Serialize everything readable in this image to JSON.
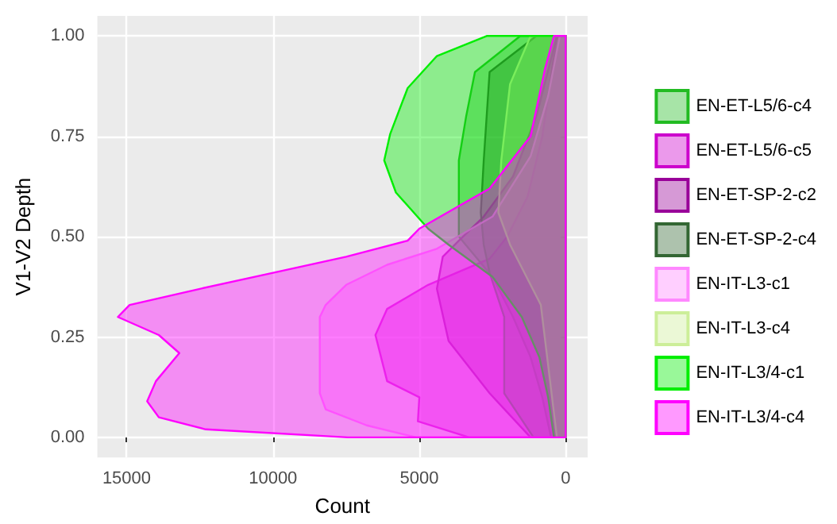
{
  "chart_data": {
    "type": "area",
    "orientation": "horizontal",
    "xlabel": "Count",
    "ylabel": "V1-V2 Depth",
    "xlim": [
      16000,
      -750
    ],
    "xticks": [
      15000,
      10000,
      5000,
      0
    ],
    "ylim": [
      -0.05,
      1.05
    ],
    "yticks": [
      {
        "value": 0,
        "label": "0.00"
      },
      {
        "value": 0.25,
        "label": "0.25"
      },
      {
        "value": 0.5,
        "label": "0.50"
      },
      {
        "value": 0.75,
        "label": "0.75"
      },
      {
        "value": 1,
        "label": "1.00"
      }
    ],
    "grid": true,
    "legend": "right",
    "series": [
      {
        "name": "EN-ET-L5/6-c4",
        "color": "#22bb22",
        "x": [
          0,
          0.1,
          0.2,
          0.3,
          0.4,
          0.5,
          0.6,
          0.69,
          0.8,
          0.91,
          1.0
        ],
        "values": [
          500,
          800,
          1200,
          1800,
          2500,
          3650,
          3650,
          3650,
          3400,
          3100,
          1550
        ]
      },
      {
        "name": "EN-ET-L5/6-c5",
        "color": "#cc00cc",
        "x": [
          0,
          0.04,
          0.1,
          0.14,
          0.255,
          0.32,
          0.38,
          0.445,
          0.5,
          0.6,
          0.75,
          0.9,
          1.0
        ],
        "values": [
          3300,
          5050,
          5000,
          6100,
          6500,
          6100,
          4700,
          2600,
          2000,
          1300,
          800,
          500,
          300
        ]
      },
      {
        "name": "EN-ET-SP-2-c2",
        "color": "#990099",
        "x": [
          0,
          0.11,
          0.24,
          0.37,
          0.45,
          0.49,
          0.55,
          0.65,
          0.8,
          1.0
        ],
        "values": [
          1200,
          2600,
          4000,
          4400,
          4200,
          3650,
          2800,
          1800,
          1000,
          300
        ]
      },
      {
        "name": "EN-ET-SP-2-c4",
        "color": "#336633",
        "x": [
          0,
          0.11,
          0.3,
          0.41,
          0.48,
          0.56,
          0.69,
          0.91,
          1.0
        ],
        "values": [
          1100,
          2100,
          2100,
          2600,
          2800,
          2900,
          2800,
          2600,
          1000
        ]
      },
      {
        "name": "EN-IT-L3-c1",
        "color": "#ff88ff",
        "x": [
          0,
          0.03,
          0.07,
          0.11,
          0.3,
          0.33,
          0.38,
          0.43,
          0.47,
          0.55,
          0.7,
          0.85,
          1.0
        ],
        "values": [
          5100,
          6800,
          8200,
          8400,
          8400,
          8200,
          7500,
          6100,
          4400,
          2500,
          1200,
          600,
          200
        ]
      },
      {
        "name": "EN-IT-L3-c4",
        "color": "#ccee99",
        "x": [
          0,
          0.24,
          0.33,
          0.48,
          0.56,
          0.69,
          0.88,
          1.0
        ],
        "values": [
          300,
          700,
          850,
          1900,
          2300,
          2200,
          1900,
          1200
        ]
      },
      {
        "name": "EN-IT-L3/4-c1",
        "color": "#00ee00",
        "x": [
          0,
          0.1,
          0.2,
          0.3,
          0.4,
          0.48,
          0.52,
          0.61,
          0.69,
          0.755,
          0.87,
          0.95,
          1.0
        ],
        "values": [
          400,
          600,
          900,
          1500,
          2500,
          4000,
          4700,
          5800,
          6200,
          6000,
          5400,
          4400,
          2700
        ]
      },
      {
        "name": "EN-IT-L3/4-c4",
        "color": "#ff00ff",
        "x": [
          0,
          0.02,
          0.05,
          0.09,
          0.14,
          0.21,
          0.255,
          0.3,
          0.33,
          0.37,
          0.41,
          0.45,
          0.49,
          0.52,
          0.62,
          0.75,
          0.92,
          1.0
        ],
        "values": [
          7450,
          12300,
          13900,
          14300,
          14000,
          13200,
          13900,
          15300,
          14900,
          12500,
          10000,
          7500,
          5400,
          5000,
          2600,
          1200,
          700,
          400
        ]
      }
    ]
  }
}
